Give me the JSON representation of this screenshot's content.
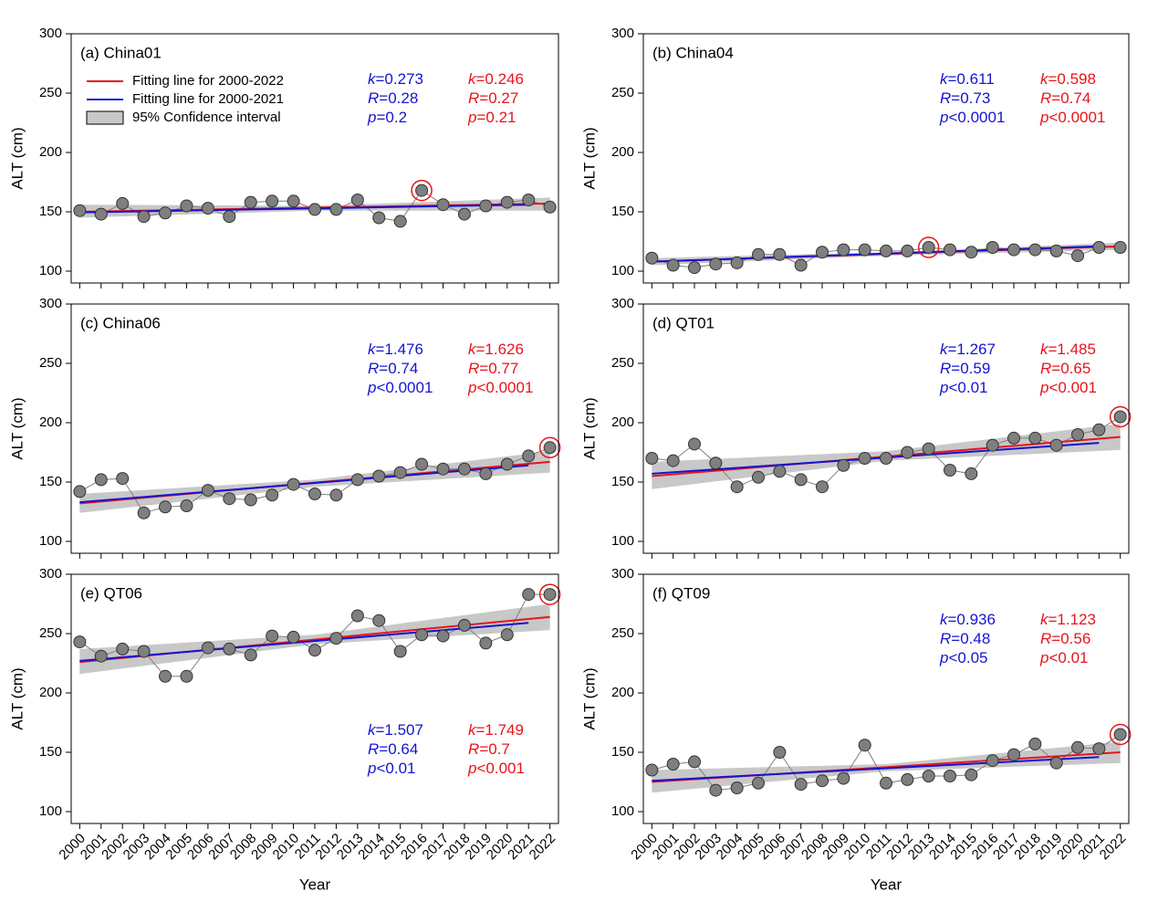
{
  "chart_data": [
    {
      "type": "line",
      "title": "(a) China01",
      "ylabel": "ALT (cm)",
      "x": [
        2000,
        2001,
        2002,
        2003,
        2004,
        2005,
        2006,
        2007,
        2008,
        2009,
        2010,
        2011,
        2012,
        2013,
        2014,
        2015,
        2016,
        2017,
        2018,
        2019,
        2020,
        2021,
        2022
      ],
      "xlim": [
        1999.6,
        2022.4
      ],
      "xticks": [
        2000,
        2001,
        2002,
        2003,
        2004,
        2005,
        2006,
        2007,
        2008,
        2009,
        2010,
        2011,
        2012,
        2013,
        2014,
        2015,
        2016,
        2017,
        2018,
        2019,
        2020,
        2021,
        2022
      ],
      "xtick_labels": false,
      "ylim": [
        90,
        300
      ],
      "yticks": [
        100,
        150,
        200,
        250,
        300
      ],
      "band": {
        "name": "95% Confidence interval",
        "color": "#c8c8c8",
        "x": [
          2000,
          2011,
          2022
        ],
        "lower": [
          145,
          151,
          151
        ],
        "upper": [
          156,
          155,
          162
        ]
      },
      "series": [
        {
          "color": "#7f7f7f",
          "marker": true,
          "values": [
            151,
            148,
            157,
            146,
            149,
            155,
            153,
            146,
            158,
            159,
            159,
            152,
            152,
            160,
            145,
            142,
            168,
            156,
            148,
            155,
            158,
            160,
            154
          ]
        },
        {
          "name": "Fitting line for 2000-2022",
          "color": "#e8141c",
          "x": [
            2000,
            2022
          ],
          "values": [
            150,
            157
          ]
        },
        {
          "name": "Fitting line for 2000-2021",
          "color": "#1414d2",
          "x": [
            2000,
            2021
          ],
          "values": [
            149.5,
            156
          ]
        }
      ],
      "legend": "upper left",
      "highlight_x": 2016,
      "highlight_color": "#e8141c",
      "stats_position": "upper right",
      "stats": [
        {
          "color": "#1414d2",
          "labels": [
            "k=0.273",
            "R=0.28",
            "p=0.2"
          ]
        },
        {
          "color": "#e8141c",
          "labels": [
            "k=0.246",
            "R=0.27",
            "p=0.21"
          ]
        }
      ]
    },
    {
      "type": "line",
      "title": "(b) China04",
      "ylabel": "ALT (cm)",
      "x": [
        2000,
        2001,
        2002,
        2003,
        2004,
        2005,
        2006,
        2007,
        2008,
        2009,
        2010,
        2011,
        2012,
        2013,
        2014,
        2015,
        2016,
        2017,
        2018,
        2019,
        2020,
        2021,
        2022
      ],
      "xlim": [
        1999.6,
        2022.4
      ],
      "xticks": [
        2000,
        2001,
        2002,
        2003,
        2004,
        2005,
        2006,
        2007,
        2008,
        2009,
        2010,
        2011,
        2012,
        2013,
        2014,
        2015,
        2016,
        2017,
        2018,
        2019,
        2020,
        2021,
        2022
      ],
      "xtick_labels": false,
      "ylim": [
        90,
        300
      ],
      "yticks": [
        100,
        150,
        200,
        250,
        300
      ],
      "band": {
        "color": "#c8c8c8",
        "x": [
          2000,
          2011,
          2022
        ],
        "lower": [
          105,
          113,
          118
        ],
        "upper": [
          111,
          116,
          124
        ]
      },
      "series": [
        {
          "color": "#7f7f7f",
          "marker": true,
          "values": [
            111,
            105,
            103,
            106,
            107,
            114,
            114,
            105,
            116,
            118,
            118,
            117,
            117,
            120,
            118,
            116,
            120,
            118,
            118,
            117,
            113,
            120,
            120
          ]
        },
        {
          "color": "#e8141c",
          "x": [
            2000,
            2022
          ],
          "values": [
            108,
            121
          ]
        },
        {
          "color": "#1414d2",
          "x": [
            2000,
            2021
          ],
          "values": [
            108,
            121
          ]
        }
      ],
      "highlight_x": 2013,
      "highlight_color": "#e8141c",
      "stats_position": "upper right",
      "stats": [
        {
          "color": "#1414d2",
          "labels": [
            "k=0.611",
            "R=0.73",
            "p<0.0001"
          ]
        },
        {
          "color": "#e8141c",
          "labels": [
            "k=0.598",
            "R=0.74",
            "p<0.0001"
          ]
        }
      ]
    },
    {
      "type": "line",
      "title": "(c) China06",
      "ylabel": "ALT (cm)",
      "x": [
        2000,
        2001,
        2002,
        2003,
        2004,
        2005,
        2006,
        2007,
        2008,
        2009,
        2010,
        2011,
        2012,
        2013,
        2014,
        2015,
        2016,
        2017,
        2018,
        2019,
        2020,
        2021,
        2022
      ],
      "xlim": [
        1999.6,
        2022.4
      ],
      "xticks": [
        2000,
        2001,
        2002,
        2003,
        2004,
        2005,
        2006,
        2007,
        2008,
        2009,
        2010,
        2011,
        2012,
        2013,
        2014,
        2015,
        2016,
        2017,
        2018,
        2019,
        2020,
        2021,
        2022
      ],
      "xtick_labels": false,
      "ylim": [
        90,
        300
      ],
      "yticks": [
        100,
        150,
        200,
        250,
        300
      ],
      "band": {
        "color": "#c8c8c8",
        "x": [
          2000,
          2011,
          2022
        ],
        "lower": [
          124,
          146,
          158
        ],
        "upper": [
          140,
          152,
          176
        ]
      },
      "series": [
        {
          "color": "#7f7f7f",
          "marker": true,
          "values": [
            142,
            152,
            153,
            124,
            129,
            130,
            143,
            136,
            135,
            139,
            148,
            140,
            139,
            152,
            155,
            158,
            165,
            161,
            161,
            157,
            165,
            172,
            179
          ]
        },
        {
          "color": "#e8141c",
          "x": [
            2000,
            2022
          ],
          "values": [
            132,
            167
          ]
        },
        {
          "color": "#1414d2",
          "x": [
            2000,
            2021
          ],
          "values": [
            133,
            164
          ]
        }
      ],
      "highlight_x": 2022,
      "highlight_color": "#e8141c",
      "stats_position": "upper right",
      "stats": [
        {
          "color": "#1414d2",
          "labels": [
            "k=1.476",
            "R=0.74",
            "p<0.0001"
          ]
        },
        {
          "color": "#e8141c",
          "labels": [
            "k=1.626",
            "R=0.77",
            "p<0.0001"
          ]
        }
      ]
    },
    {
      "type": "line",
      "title": "(d) QT01",
      "ylabel": "ALT (cm)",
      "x": [
        2000,
        2001,
        2002,
        2003,
        2004,
        2005,
        2006,
        2007,
        2008,
        2009,
        2010,
        2011,
        2012,
        2013,
        2014,
        2015,
        2016,
        2017,
        2018,
        2019,
        2020,
        2021,
        2022
      ],
      "xlim": [
        1999.6,
        2022.4
      ],
      "xticks": [
        2000,
        2001,
        2002,
        2003,
        2004,
        2005,
        2006,
        2007,
        2008,
        2009,
        2010,
        2011,
        2012,
        2013,
        2014,
        2015,
        2016,
        2017,
        2018,
        2019,
        2020,
        2021,
        2022
      ],
      "xtick_labels": false,
      "ylim": [
        90,
        300
      ],
      "yticks": [
        100,
        150,
        200,
        250,
        300
      ],
      "band": {
        "color": "#c8c8c8",
        "x": [
          2000,
          2011,
          2022
        ],
        "lower": [
          144,
          168,
          177
        ],
        "upper": [
          167,
          176,
          199
        ]
      },
      "series": [
        {
          "color": "#7f7f7f",
          "marker": true,
          "values": [
            170,
            168,
            182,
            166,
            146,
            154,
            159,
            152,
            146,
            164,
            170,
            170,
            175,
            178,
            160,
            157,
            181,
            187,
            187,
            181,
            190,
            194,
            205
          ]
        },
        {
          "color": "#e8141c",
          "x": [
            2000,
            2022
          ],
          "values": [
            155,
            188
          ]
        },
        {
          "color": "#1414d2",
          "x": [
            2000,
            2021
          ],
          "values": [
            157,
            183
          ]
        }
      ],
      "highlight_x": 2022,
      "highlight_color": "#e8141c",
      "stats_position": "upper right",
      "stats": [
        {
          "color": "#1414d2",
          "labels": [
            "k=1.267",
            "R=0.59",
            "p<0.01"
          ]
        },
        {
          "color": "#e8141c",
          "labels": [
            "k=1.485",
            "R=0.65",
            "p<0.001"
          ]
        }
      ]
    },
    {
      "type": "line",
      "title": "(e) QT06",
      "ylabel": "ALT (cm)",
      "xlabel": "Year",
      "x": [
        2000,
        2001,
        2002,
        2003,
        2004,
        2005,
        2006,
        2007,
        2008,
        2009,
        2010,
        2011,
        2012,
        2013,
        2014,
        2015,
        2016,
        2017,
        2018,
        2019,
        2020,
        2021,
        2022
      ],
      "xlim": [
        1999.6,
        2022.4
      ],
      "xticks": [
        2000,
        2001,
        2002,
        2003,
        2004,
        2005,
        2006,
        2007,
        2008,
        2009,
        2010,
        2011,
        2012,
        2013,
        2014,
        2015,
        2016,
        2017,
        2018,
        2019,
        2020,
        2021,
        2022
      ],
      "ylim": [
        90,
        300
      ],
      "yticks": [
        100,
        150,
        200,
        250,
        300
      ],
      "band": {
        "color": "#c8c8c8",
        "x": [
          2000,
          2011,
          2022
        ],
        "lower": [
          216,
          241,
          253
        ],
        "upper": [
          237,
          249,
          275
        ]
      },
      "series": [
        {
          "color": "#7f7f7f",
          "marker": true,
          "values": [
            243,
            231,
            237,
            235,
            214,
            214,
            238,
            237,
            232,
            248,
            247,
            236,
            246,
            265,
            261,
            235,
            249,
            248,
            257,
            242,
            249,
            283,
            283
          ]
        },
        {
          "color": "#e8141c",
          "x": [
            2000,
            2022
          ],
          "values": [
            226,
            264
          ]
        },
        {
          "color": "#1414d2",
          "x": [
            2000,
            2021
          ],
          "values": [
            227,
            259
          ]
        }
      ],
      "highlight_x": 2022,
      "highlight_color": "#e8141c",
      "stats_position": "lower right",
      "stats": [
        {
          "color": "#1414d2",
          "labels": [
            "k=1.507",
            "R=0.64",
            "p<0.01"
          ]
        },
        {
          "color": "#e8141c",
          "labels": [
            "k=1.749",
            "R=0.7",
            "p<0.001"
          ]
        }
      ]
    },
    {
      "type": "line",
      "title": "(f) QT09",
      "ylabel": "ALT (cm)",
      "xlabel": "Year",
      "x": [
        2000,
        2001,
        2002,
        2003,
        2004,
        2005,
        2006,
        2007,
        2008,
        2009,
        2010,
        2011,
        2012,
        2013,
        2014,
        2015,
        2016,
        2017,
        2018,
        2019,
        2020,
        2021,
        2022
      ],
      "xlim": [
        1999.6,
        2022.4
      ],
      "xticks": [
        2000,
        2001,
        2002,
        2003,
        2004,
        2005,
        2006,
        2007,
        2008,
        2009,
        2010,
        2011,
        2012,
        2013,
        2014,
        2015,
        2016,
        2017,
        2018,
        2019,
        2020,
        2021,
        2022
      ],
      "ylim": [
        90,
        300
      ],
      "yticks": [
        100,
        150,
        200,
        250,
        300
      ],
      "band": {
        "color": "#c8c8c8",
        "x": [
          2000,
          2011,
          2022
        ],
        "lower": [
          116,
          134,
          141
        ],
        "upper": [
          135,
          140,
          159
        ]
      },
      "series": [
        {
          "color": "#7f7f7f",
          "marker": true,
          "values": [
            135,
            140,
            142,
            118,
            120,
            124,
            150,
            123,
            126,
            128,
            156,
            124,
            127,
            130,
            130,
            131,
            143,
            148,
            157,
            141,
            154,
            153,
            165
          ]
        },
        {
          "color": "#e8141c",
          "x": [
            2000,
            2022
          ],
          "values": [
            125,
            150
          ]
        },
        {
          "color": "#1414d2",
          "x": [
            2000,
            2021
          ],
          "values": [
            126,
            146
          ]
        }
      ],
      "highlight_x": 2022,
      "highlight_color": "#e8141c",
      "stats_position": "upper right",
      "stats": [
        {
          "color": "#1414d2",
          "labels": [
            "k=0.936",
            "R=0.48",
            "p<0.05"
          ]
        },
        {
          "color": "#e8141c",
          "labels": [
            "k=1.123",
            "R=0.56",
            "p<0.01"
          ]
        }
      ]
    }
  ]
}
